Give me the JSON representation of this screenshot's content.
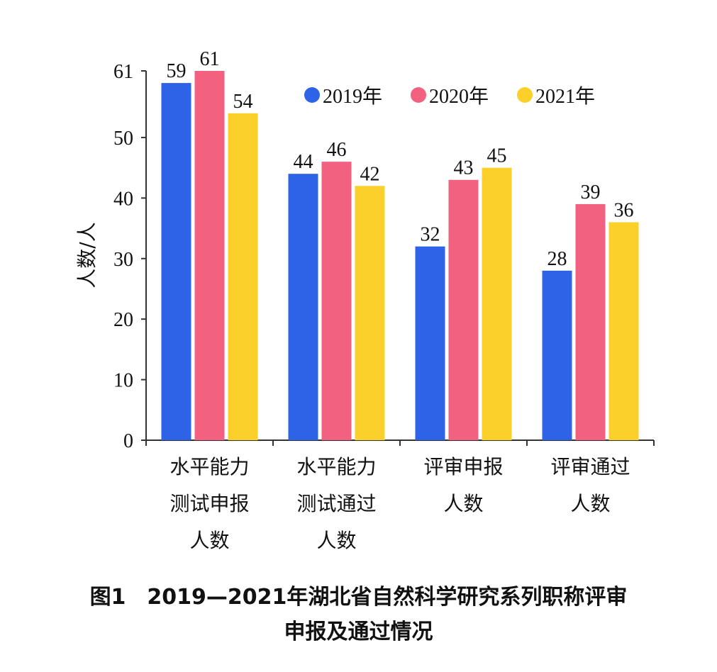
{
  "chart_data": {
    "type": "bar",
    "categories": [
      [
        "水平能力",
        "测试申报",
        "人数"
      ],
      [
        "水平能力",
        "测试通过",
        "人数"
      ],
      [
        "评审申报",
        "人数"
      ],
      [
        "评审通过",
        "人数"
      ]
    ],
    "series": [
      {
        "name": "2019年",
        "color": "#2e63e8",
        "values": [
          59,
          44,
          32,
          28
        ]
      },
      {
        "name": "2020年",
        "color": "#f2617f",
        "values": [
          61,
          46,
          43,
          39
        ]
      },
      {
        "name": "2021年",
        "color": "#fbd02a",
        "values": [
          54,
          42,
          45,
          36
        ]
      }
    ],
    "ylabel": "人数/人",
    "ylim": [
      0,
      61
    ],
    "yticks": [
      "0",
      "10",
      "20",
      "30",
      "40",
      "50",
      "61"
    ],
    "legend_position": "top-right",
    "grid": false
  },
  "caption": {
    "line1": "图1　2019—2021年湖北省自然科学研究系列职称评审",
    "line2": "申报及通过情况"
  }
}
